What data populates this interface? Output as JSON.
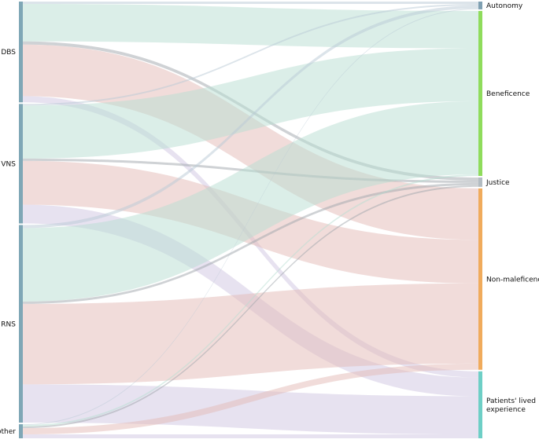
{
  "chart_data": {
    "type": "sankey",
    "title": "",
    "sources": [
      {
        "id": "dbs",
        "label": "DBS",
        "value": 129
      },
      {
        "id": "vns",
        "label": "VNS",
        "value": 153
      },
      {
        "id": "rns",
        "label": "RNS",
        "value": 253
      },
      {
        "id": "other",
        "label": "other",
        "value": 18
      }
    ],
    "targets": [
      {
        "id": "autonomy",
        "label": "Autonomy",
        "value": 10,
        "color": "#7fa0b2"
      },
      {
        "id": "beneficence",
        "label": "Beneficence",
        "value": 212,
        "color": "#8fdc5c"
      },
      {
        "id": "justice",
        "label": "Justice",
        "value": 12,
        "color": "#b3bcc2"
      },
      {
        "id": "nonmaleficence",
        "label": "Non-maleficence",
        "value": 233,
        "color": "#f0ab5c"
      },
      {
        "id": "lived",
        "label": "Patients' lived experience",
        "label_lines": [
          "Patients' lived",
          "experience"
        ],
        "value": 86,
        "color": "#6ecfc6"
      }
    ],
    "source_color": "#7fa7b6",
    "link_colors": {
      "autonomy": "#b9c9d6",
      "beneficence": "#b7ddd1",
      "justice": "#9fa5ab",
      "nonmaleficence": "#e3b9b6",
      "lived": "#cfc6e1"
    },
    "links": [
      {
        "source": "dbs",
        "target": "autonomy",
        "value": 3
      },
      {
        "source": "dbs",
        "target": "beneficence",
        "value": 48
      },
      {
        "source": "dbs",
        "target": "justice",
        "value": 4
      },
      {
        "source": "dbs",
        "target": "nonmaleficence",
        "value": 66
      },
      {
        "source": "dbs",
        "target": "lived",
        "value": 8
      },
      {
        "source": "vns",
        "target": "autonomy",
        "value": 2
      },
      {
        "source": "vns",
        "target": "beneficence",
        "value": 68
      },
      {
        "source": "vns",
        "target": "justice",
        "value": 3
      },
      {
        "source": "vns",
        "target": "nonmaleficence",
        "value": 56
      },
      {
        "source": "vns",
        "target": "lived",
        "value": 24
      },
      {
        "source": "rns",
        "target": "autonomy",
        "value": 4
      },
      {
        "source": "rns",
        "target": "beneficence",
        "value": 94
      },
      {
        "source": "rns",
        "target": "justice",
        "value": 3
      },
      {
        "source": "rns",
        "target": "nonmaleficence",
        "value": 103
      },
      {
        "source": "rns",
        "target": "lived",
        "value": 49
      },
      {
        "source": "other",
        "target": "autonomy",
        "value": 1
      },
      {
        "source": "other",
        "target": "beneficence",
        "value": 2
      },
      {
        "source": "other",
        "target": "justice",
        "value": 2
      },
      {
        "source": "other",
        "target": "nonmaleficence",
        "value": 8
      },
      {
        "source": "other",
        "target": "lived",
        "value": 5
      }
    ]
  }
}
